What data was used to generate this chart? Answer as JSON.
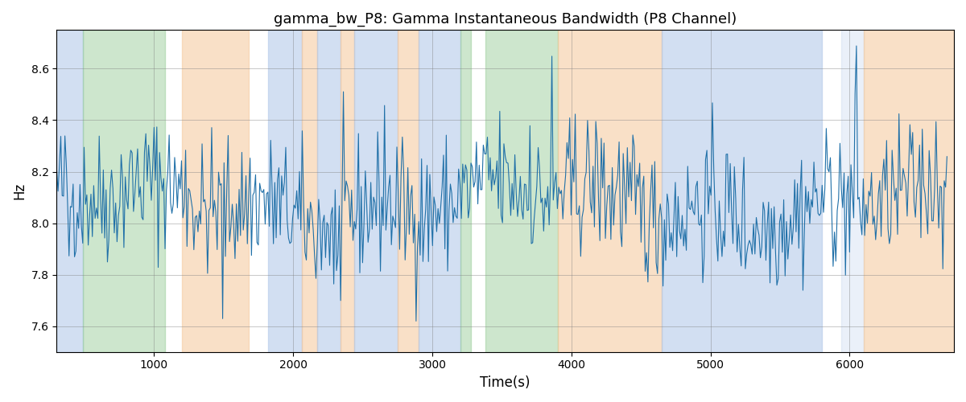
{
  "title": "gamma_bw_P8: Gamma Instantaneous Bandwidth (P8 Channel)",
  "xlabel": "Time(s)",
  "ylabel": "Hz",
  "ylim": [
    7.5,
    8.75
  ],
  "xlim": [
    300,
    6750
  ],
  "yticks": [
    7.6,
    7.8,
    8.0,
    8.2,
    8.4,
    8.6
  ],
  "xticks": [
    1000,
    2000,
    3000,
    4000,
    5000,
    6000
  ],
  "line_color": "#2070a8",
  "line_width": 0.8,
  "signal_mean": 8.08,
  "signal_std": 0.13,
  "bg_regions": [
    {
      "xmin": 300,
      "xmax": 490,
      "color": "#aec6e8",
      "alpha": 0.55
    },
    {
      "xmin": 490,
      "xmax": 1080,
      "color": "#90c990",
      "alpha": 0.45
    },
    {
      "xmin": 1200,
      "xmax": 1680,
      "color": "#f5c89a",
      "alpha": 0.55
    },
    {
      "xmin": 1820,
      "xmax": 2060,
      "color": "#aec6e8",
      "alpha": 0.55
    },
    {
      "xmin": 2060,
      "xmax": 2170,
      "color": "#f5c89a",
      "alpha": 0.55
    },
    {
      "xmin": 2170,
      "xmax": 2340,
      "color": "#aec6e8",
      "alpha": 0.55
    },
    {
      "xmin": 2340,
      "xmax": 2440,
      "color": "#f5c89a",
      "alpha": 0.55
    },
    {
      "xmin": 2440,
      "xmax": 2750,
      "color": "#aec6e8",
      "alpha": 0.55
    },
    {
      "xmin": 2750,
      "xmax": 2900,
      "color": "#f5c89a",
      "alpha": 0.55
    },
    {
      "xmin": 2900,
      "xmax": 3200,
      "color": "#aec6e8",
      "alpha": 0.55
    },
    {
      "xmin": 3200,
      "xmax": 3280,
      "color": "#90c990",
      "alpha": 0.45
    },
    {
      "xmin": 3380,
      "xmax": 3900,
      "color": "#90c990",
      "alpha": 0.45
    },
    {
      "xmin": 3900,
      "xmax": 4650,
      "color": "#f5c89a",
      "alpha": 0.55
    },
    {
      "xmin": 4650,
      "xmax": 5800,
      "color": "#aec6e8",
      "alpha": 0.55
    },
    {
      "xmin": 5940,
      "xmax": 6100,
      "color": "#aec6e8",
      "alpha": 0.25
    },
    {
      "xmin": 6100,
      "xmax": 6750,
      "color": "#f5c89a",
      "alpha": 0.55
    }
  ],
  "seed": 42,
  "n_points": 650,
  "t_start": 300,
  "t_end": 6700
}
